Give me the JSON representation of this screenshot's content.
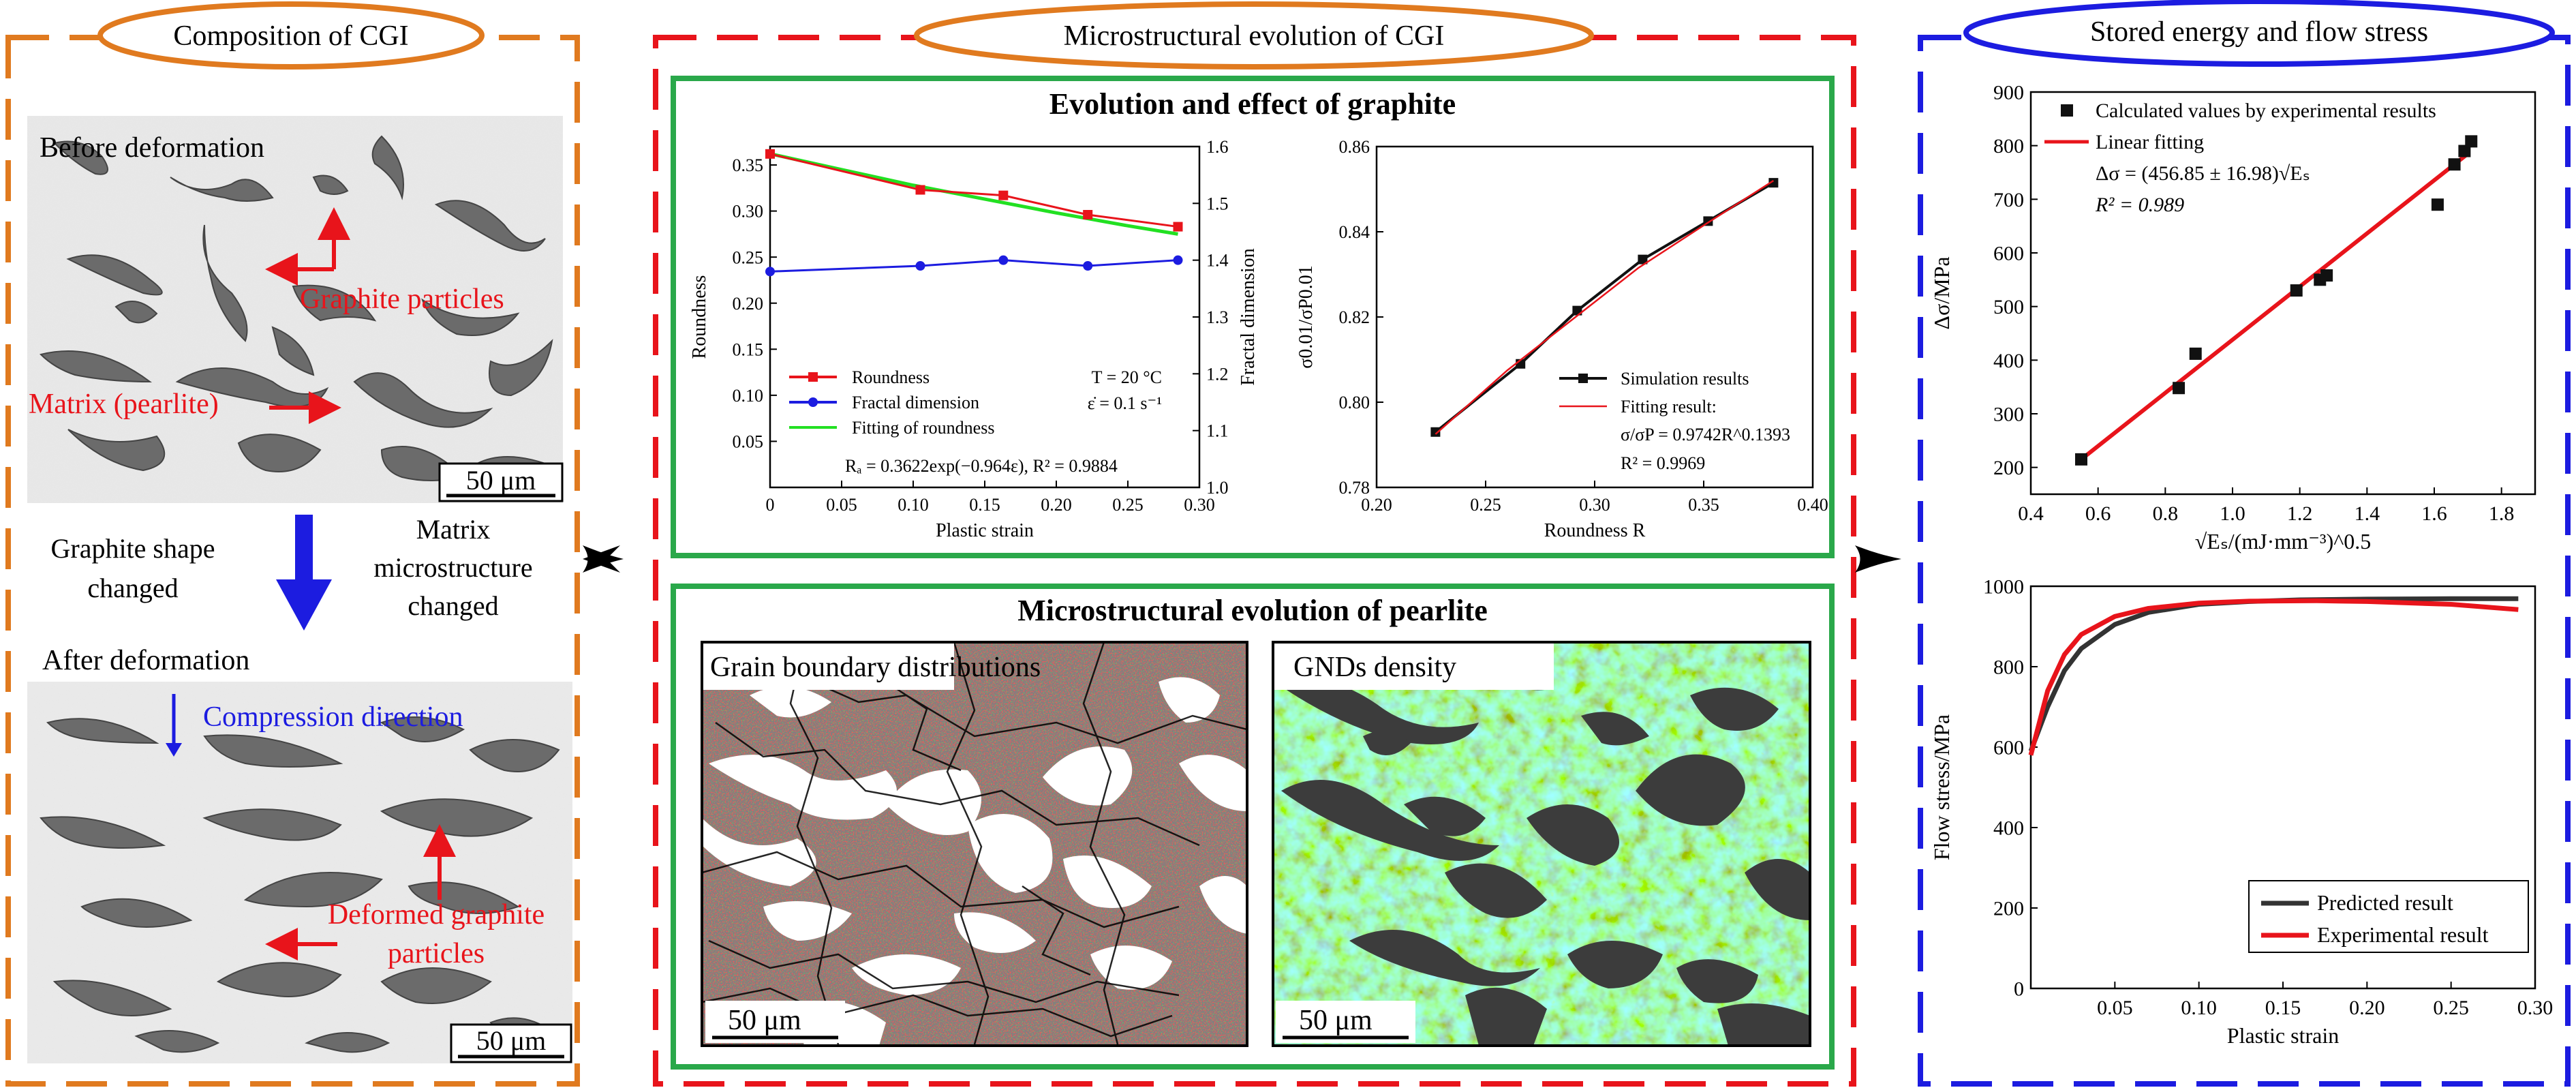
{
  "panels": {
    "left_title": "Composition of CGI",
    "middle_title": "Microstructural evolution of CGI",
    "right_title": "Stored energy and flow stress"
  },
  "colors": {
    "orange": "#e07a1f",
    "red": "#e8141b",
    "blue": "#1c1ce0",
    "green": "#2aa84a"
  },
  "left": {
    "before_label": "Before deformation",
    "graphite_particles": "Graphite particles",
    "matrix_label": "Matrix (pearlite)",
    "scale_top": "50 μm",
    "shape_changed": [
      "Graphite shape",
      "changed"
    ],
    "matrix_changed": [
      "Matrix",
      "microstructure",
      "changed"
    ],
    "after_label": "After deformation",
    "compression": "Compression direction",
    "deformed": [
      "Deformed graphite",
      "particles"
    ],
    "scale_bottom": "50 μm"
  },
  "middle": {
    "graphite_title": "Evolution and effect of graphite",
    "pearlite_title": "Microstructural evolution of pearlite",
    "gb_label": "Grain boundary distributions",
    "gnd_label": "GNDs density",
    "scale_gb": "50 μm",
    "scale_gnd": "50 μm"
  },
  "chart_data": [
    {
      "type": "line",
      "xlabel": "Plastic strain",
      "ylabel": "Roundness",
      "ylabel_right": "Fractal dimension",
      "xlim": [
        0,
        0.3
      ],
      "ylim": [
        0,
        0.37
      ],
      "ylim_right": [
        1.0,
        1.6
      ],
      "xticks": [
        "0",
        "0.05",
        "0.10",
        "0.15",
        "0.20",
        "0.25",
        "0.30"
      ],
      "yticks": [
        "0.05",
        "0.10",
        "0.15",
        "0.20",
        "0.25",
        "0.30",
        "0.35"
      ],
      "yticks_right": [
        "1.0",
        "1.1",
        "1.2",
        "1.3",
        "1.4",
        "1.5",
        "1.6"
      ],
      "annotations": [
        "T = 20 °C",
        "ε̇ = 0.1 s⁻¹",
        "Rₐ = 0.3622exp(−0.964ε), R² = 0.9884"
      ],
      "series": [
        {
          "name": "Roundness",
          "color": "#e8141b",
          "marker": "square",
          "x": [
            0,
            0.105,
            0.163,
            0.222,
            0.285
          ],
          "y": [
            0.362,
            0.323,
            0.317,
            0.296,
            0.283
          ]
        },
        {
          "name": "Fractal dimension",
          "color": "#1c1ce0",
          "marker": "circle",
          "axis": "right",
          "x": [
            0,
            0.105,
            0.163,
            0.222,
            0.285
          ],
          "y": [
            1.38,
            1.39,
            1.4,
            1.39,
            1.4
          ]
        },
        {
          "name": "Fitting of roundness",
          "color": "#22e022",
          "marker": "none",
          "x": [
            0,
            0.05,
            0.1,
            0.15,
            0.2,
            0.25,
            0.285
          ],
          "y": [
            0.3622,
            0.345,
            0.328,
            0.313,
            0.298,
            0.284,
            0.275
          ]
        }
      ]
    },
    {
      "type": "line",
      "xlabel": "Roundness R",
      "ylabel": "σ0.01/σP0.01",
      "xlim": [
        0.2,
        0.4
      ],
      "ylim": [
        0.78,
        0.86
      ],
      "xticks": [
        "0.20",
        "0.25",
        "0.30",
        "0.35",
        "0.40"
      ],
      "yticks": [
        "0.78",
        "0.80",
        "0.82",
        "0.84",
        "0.86"
      ],
      "annotations": [
        "σ/σP = 0.9742R^0.1393",
        "R² = 0.9969"
      ],
      "series": [
        {
          "name": "Simulation results",
          "color": "#111111",
          "marker": "square",
          "x": [
            0.227,
            0.266,
            0.292,
            0.322,
            0.352,
            0.382
          ],
          "y": [
            0.793,
            0.809,
            0.8215,
            0.8335,
            0.8425,
            0.8515
          ]
        },
        {
          "name": "Fitting result:",
          "color": "#e8141b",
          "marker": "none",
          "x": [
            0.227,
            0.26,
            0.29,
            0.32,
            0.35,
            0.382
          ],
          "y": [
            0.7925,
            0.8075,
            0.8195,
            0.8315,
            0.8415,
            0.852
          ]
        }
      ]
    },
    {
      "type": "scatter",
      "xlabel": "√Eₛ/(mJ·mm⁻³)^0.5",
      "ylabel": "Δσ/MPa",
      "xlim": [
        0.4,
        1.9
      ],
      "ylim": [
        150,
        900
      ],
      "xticks": [
        "0.4",
        "0.6",
        "0.8",
        "1.0",
        "1.2",
        "1.4",
        "1.6",
        "1.8"
      ],
      "yticks": [
        "200",
        "300",
        "400",
        "500",
        "600",
        "700",
        "800",
        "900"
      ],
      "annotations": [
        "Δσ = (456.85 ± 16.98)√Eₛ",
        "R² = 0.989"
      ],
      "series": [
        {
          "name": "Calculated values by experimental results",
          "color": "#111111",
          "marker": "square",
          "x": [
            0.55,
            0.84,
            0.89,
            1.19,
            1.26,
            1.28,
            1.61,
            1.66,
            1.69,
            1.71
          ],
          "y": [
            215,
            348,
            412,
            530,
            550,
            558,
            690,
            765,
            790,
            808
          ]
        },
        {
          "name": "Linear fitting",
          "color": "#e8141b",
          "marker": "none",
          "x": [
            0.55,
            1.7
          ],
          "y": [
            215,
            785
          ]
        }
      ]
    },
    {
      "type": "line",
      "xlabel": "Plastic strain",
      "ylabel": "Flow stress/MPa",
      "xlim": [
        0,
        0.3
      ],
      "ylim": [
        0,
        1000
      ],
      "xticks": [
        "0.05",
        "0.10",
        "0.15",
        "0.20",
        "0.25",
        "0.30"
      ],
      "yticks": [
        "0",
        "200",
        "400",
        "600",
        "800",
        "1000"
      ],
      "series": [
        {
          "name": "Predicted result",
          "color": "#333333",
          "x": [
            0,
            0.01,
            0.02,
            0.03,
            0.05,
            0.07,
            0.1,
            0.13,
            0.16,
            0.2,
            0.25,
            0.29
          ],
          "y": [
            590,
            700,
            790,
            845,
            905,
            935,
            955,
            962,
            966,
            968,
            969,
            969
          ]
        },
        {
          "name": "Experimental result",
          "color": "#e8141b",
          "x": [
            0,
            0.01,
            0.02,
            0.03,
            0.05,
            0.07,
            0.1,
            0.13,
            0.17,
            0.2,
            0.25,
            0.29
          ],
          "y": [
            580,
            740,
            830,
            880,
            925,
            945,
            958,
            963,
            964,
            962,
            955,
            942
          ]
        }
      ]
    }
  ]
}
